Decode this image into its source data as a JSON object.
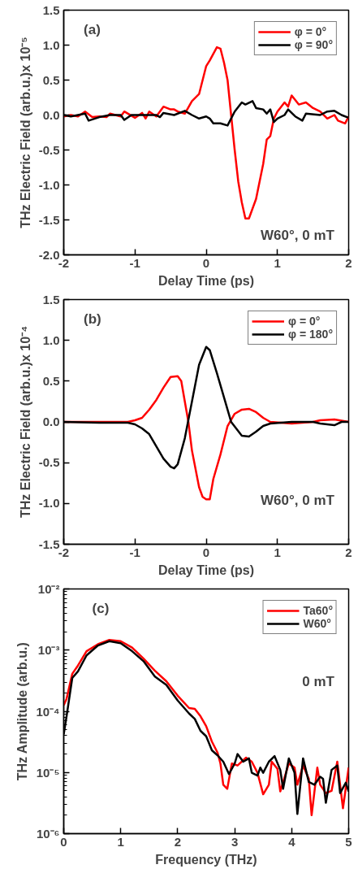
{
  "chart_data": [
    {
      "type": "line",
      "xlabel": "Delay Time (ps)",
      "ylabel": "THz Electric Field (arb.u.)x 10⁻⁵",
      "annotations": [
        "(a)",
        "W60°, 0 mT"
      ],
      "xlim": [
        -2,
        2
      ],
      "xticks": [
        -2,
        -1,
        0,
        1,
        2
      ],
      "ylim": [
        -2.0,
        1.5
      ],
      "yticks": [
        {
          "value": -2,
          "label": "-2.0"
        },
        -1.5,
        {
          "value": -1,
          "label": "-1.0"
        },
        -0.5,
        {
          "value": 0,
          "label": "0.0"
        },
        0.5,
        {
          "value": 1,
          "label": "1.0"
        },
        1.5
      ],
      "grid": false,
      "legend": "top right",
      "marker": "none",
      "line_style": "solid",
      "series": [
        {
          "name": "φ = 0°",
          "color": "#ff0000",
          "x": [
            -2,
            -1.9,
            -1.8,
            -1.7,
            -1.6,
            -1.5,
            -1.4,
            -1.35,
            -1.2,
            -1.15,
            -1.0,
            -0.9,
            -0.85,
            -0.8,
            -0.7,
            -0.6,
            -0.5,
            -0.45,
            -0.4,
            -0.3,
            -0.2,
            -0.1,
            0,
            0.05,
            0.15,
            0.2,
            0.25,
            0.3,
            0.35,
            0.4,
            0.45,
            0.5,
            0.55,
            0.6,
            0.7,
            0.8,
            0.85,
            0.9,
            0.95,
            1.0,
            1.1,
            1.15,
            1.2,
            1.3,
            1.4,
            1.5,
            1.6,
            1.7,
            1.8,
            1.85,
            1.95,
            2.0
          ],
          "values": [
            -0.02,
            0.0,
            -0.02,
            0.05,
            -0.03,
            -0.02,
            -0.03,
            0.02,
            -0.02,
            0.05,
            -0.04,
            0.03,
            -0.05,
            0.05,
            -0.02,
            0.12,
            0.08,
            0.08,
            0.05,
            0.02,
            0.2,
            0.3,
            0.7,
            0.78,
            0.97,
            0.95,
            0.75,
            0.5,
            0.0,
            -0.5,
            -0.95,
            -1.25,
            -1.48,
            -1.48,
            -1.2,
            -0.7,
            -0.35,
            -0.3,
            -0.05,
            0.05,
            0.18,
            0.12,
            0.28,
            0.15,
            0.18,
            0.1,
            0.05,
            -0.05,
            0.0,
            -0.08,
            -0.12,
            -0.02
          ]
        },
        {
          "name": "φ = 90°",
          "color": "#000000",
          "x": [
            -2,
            -1.9,
            -1.8,
            -1.7,
            -1.65,
            -1.5,
            -1.35,
            -1.2,
            -1.15,
            -1.05,
            -0.9,
            -0.7,
            -0.65,
            -0.6,
            -0.45,
            -0.3,
            -0.2,
            -0.1,
            0.0,
            0.05,
            0.1,
            0.2,
            0.3,
            0.4,
            0.5,
            0.55,
            0.65,
            0.7,
            0.8,
            0.85,
            0.9,
            0.95,
            1.0,
            1.1,
            1.15,
            1.25,
            1.35,
            1.4,
            1.6,
            1.7,
            1.8,
            1.9,
            2.0
          ],
          "values": [
            0.0,
            -0.02,
            0.0,
            0.02,
            -0.08,
            -0.03,
            0.0,
            0.0,
            -0.07,
            0.0,
            0.0,
            0.0,
            -0.03,
            0.03,
            0.0,
            0.06,
            0.0,
            -0.05,
            -0.02,
            -0.05,
            -0.12,
            -0.12,
            -0.15,
            0.05,
            0.18,
            0.15,
            0.2,
            0.1,
            0.08,
            0.02,
            0.08,
            -0.1,
            -0.05,
            0.0,
            0.08,
            -0.02,
            -0.08,
            0.02,
            0.0,
            0.05,
            0.06,
            0.0,
            -0.04
          ]
        }
      ]
    },
    {
      "type": "line",
      "xlabel": "Delay Time (ps)",
      "ylabel": "THz Electric Field (arb.u.)x 10⁻⁴",
      "annotations": [
        "(b)",
        "W60°, 0 mT"
      ],
      "xlim": [
        -2,
        2
      ],
      "xticks": [
        -2,
        -1,
        0,
        1,
        2
      ],
      "ylim": [
        -1.5,
        1.5
      ],
      "yticks": [
        -1.5,
        {
          "value": -1,
          "label": "-1.0"
        },
        -0.5,
        {
          "value": 0,
          "label": "0.0"
        },
        0.5,
        {
          "value": 1,
          "label": "1.0"
        },
        1.5
      ],
      "grid": false,
      "legend": "top right",
      "marker": "none",
      "line_style": "solid",
      "series": [
        {
          "name": "φ = 0°",
          "color": "#ff0000",
          "x": [
            -2,
            -1.1,
            -1,
            -0.9,
            -0.8,
            -0.7,
            -0.6,
            -0.5,
            -0.4,
            -0.35,
            -0.3,
            -0.25,
            -0.2,
            -0.1,
            -0.05,
            0.0,
            0.05,
            0.1,
            0.2,
            0.3,
            0.4,
            0.5,
            0.6,
            0.7,
            0.8,
            0.9,
            1.2,
            1.5,
            1.6,
            1.8,
            2.0
          ],
          "values": [
            0,
            0.0,
            0.02,
            0.05,
            0.15,
            0.27,
            0.42,
            0.55,
            0.56,
            0.5,
            0.25,
            0.0,
            -0.35,
            -0.8,
            -0.92,
            -0.95,
            -0.95,
            -0.7,
            -0.4,
            -0.05,
            0.1,
            0.15,
            0.16,
            0.12,
            0.05,
            0.0,
            -0.02,
            0.0,
            0.02,
            0.03,
            0.0
          ]
        },
        {
          "name": "φ = 180°",
          "color": "#000000",
          "x": [
            -2,
            -1.5,
            -1.1,
            -1,
            -0.9,
            -0.8,
            -0.7,
            -0.6,
            -0.5,
            -0.45,
            -0.4,
            -0.3,
            -0.2,
            -0.1,
            0.0,
            0.05,
            0.15,
            0.25,
            0.35,
            0.5,
            0.6,
            0.7,
            0.8,
            0.9,
            1.2,
            1.5,
            1.6,
            1.8,
            1.9,
            2.0
          ],
          "values": [
            0,
            -0.01,
            -0.01,
            -0.03,
            -0.08,
            -0.15,
            -0.3,
            -0.45,
            -0.55,
            -0.57,
            -0.52,
            -0.2,
            0.25,
            0.7,
            0.92,
            0.88,
            0.6,
            0.3,
            0.0,
            -0.17,
            -0.18,
            -0.12,
            -0.05,
            -0.02,
            0.0,
            0.0,
            -0.02,
            -0.04,
            0.0,
            0.0
          ]
        }
      ]
    },
    {
      "type": "line",
      "xlabel": "Frequency (THz)",
      "ylabel": "THz Amplitude (arb.u.)",
      "annotations": [
        "(c)",
        "0 mT"
      ],
      "xlim": [
        0,
        5
      ],
      "xticks": [
        0,
        1,
        2,
        3,
        4,
        5
      ],
      "ylim": [
        1e-06,
        0.01
      ],
      "log": true,
      "yticks": [
        {
          "value": 1e-06,
          "label": "10⁻⁶"
        },
        {
          "value": 1e-05,
          "label": "10⁻⁵"
        },
        {
          "value": 0.0001,
          "label": "10⁻⁴"
        },
        {
          "value": 0.001,
          "label": "10⁻³"
        },
        {
          "value": 0.01,
          "label": "10⁻²"
        }
      ],
      "grid": false,
      "legend": "top right",
      "marker": "none",
      "line_style": "solid",
      "series": [
        {
          "name": "Ta60°",
          "color": "#ff0000",
          "x": [
            0,
            0.05,
            0.15,
            0.25,
            0.4,
            0.6,
            0.8,
            1.0,
            1.2,
            1.4,
            1.6,
            1.8,
            2.0,
            2.2,
            2.3,
            2.4,
            2.5,
            2.6,
            2.7,
            2.75,
            2.8,
            2.87,
            2.95,
            3.05,
            3.2,
            3.3,
            3.4,
            3.5,
            3.6,
            3.65,
            3.75,
            3.8,
            3.9,
            3.95,
            4.05,
            4.1,
            4.2,
            4.3,
            4.35,
            4.45,
            4.5,
            4.6,
            4.7,
            4.8,
            4.9,
            5.0
          ],
          "values": [
            0.000126,
            0.00016,
            0.00041,
            0.00056,
            0.00096,
            0.00125,
            0.00147,
            0.0014,
            0.0011,
            0.00073,
            0.00046,
            0.00031,
            0.00018,
            0.000113,
            0.00011,
            8.3e-05,
            5.7e-05,
            3.2e-05,
            2.1e-05,
            1.4e-05,
            6.3e-06,
            5.4e-06,
            1.4e-05,
            1.3e-05,
            1.75e-05,
            1.5e-05,
            9.9e-06,
            4.4e-06,
            6.3e-06,
            1.5e-05,
            1.15e-05,
            4.9e-06,
            9.9e-06,
            1.4e-05,
            1.2e-05,
            6.3e-06,
            1.3e-05,
            7.9e-06,
            2e-06,
            1.2e-05,
            6.3e-06,
            4.6e-06,
            5e-06,
            1.5e-05,
            2.6e-06,
            1.2e-05
          ]
        },
        {
          "name": "W60°",
          "color": "#000000",
          "x": [
            0,
            0.05,
            0.15,
            0.25,
            0.4,
            0.6,
            0.8,
            1.0,
            1.2,
            1.4,
            1.6,
            1.8,
            2.0,
            2.2,
            2.3,
            2.4,
            2.5,
            2.6,
            2.7,
            2.8,
            2.9,
            3.0,
            3.05,
            3.15,
            3.25,
            3.3,
            3.4,
            3.45,
            3.5,
            3.6,
            3.7,
            3.8,
            3.85,
            3.95,
            4.05,
            4.1,
            4.2,
            4.3,
            4.4,
            4.5,
            4.55,
            4.6,
            4.7,
            4.8,
            4.85,
            4.95,
            5.0
          ],
          "values": [
            4.2e-05,
            8.3e-05,
            0.00035,
            0.00045,
            0.00082,
            0.00119,
            0.0014,
            0.0013,
            0.00096,
            0.00066,
            0.00037,
            0.00027,
            0.00015,
            9.2e-05,
            7.5e-05,
            4.8e-05,
            3.9e-05,
            2.3e-05,
            1.9e-05,
            1.5e-05,
            9.4e-06,
            1.4e-05,
            2e-05,
            1.5e-05,
            1.7e-05,
            9.9e-06,
            8.9e-06,
            1.2e-05,
            9.9e-06,
            1.5e-05,
            1.85e-05,
            1.1e-05,
            5.4e-06,
            1.7e-05,
            9.9e-06,
            2.1e-06,
            1.7e-05,
            7e-06,
            6.3e-06,
            8.5e-06,
            7.9e-06,
            3.2e-06,
            1.1e-05,
            1.3e-05,
            4.6e-06,
            6.8e-06,
            4.9e-06
          ]
        }
      ]
    }
  ]
}
